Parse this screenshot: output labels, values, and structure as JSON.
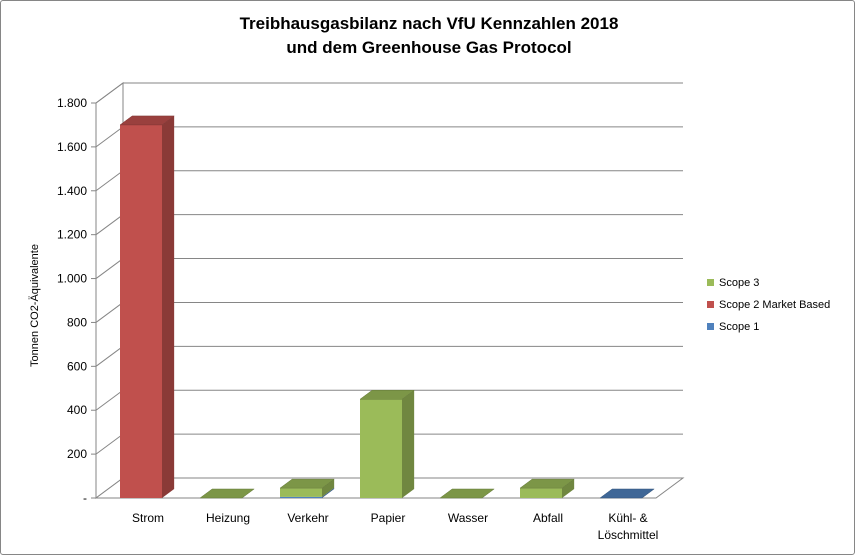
{
  "chart_data": {
    "type": "bar",
    "style": "3d-stacked-column",
    "title": [
      "Treibhausgasbilanz nach VfU Kennzahlen 2018",
      "und dem Greenhouse Gas Protocol"
    ],
    "ylabel": "Tonnen CO2-Äquivalente",
    "xlabel": "",
    "ylim": [
      0,
      1800
    ],
    "yticks": [
      0,
      200,
      400,
      600,
      800,
      1000,
      1200,
      1400,
      1600,
      1800
    ],
    "ytick_labels": [
      "-",
      "200",
      "400",
      "600",
      "800",
      "1.000",
      "1.200",
      "1.400",
      "1.600",
      "1.800"
    ],
    "categories": [
      [
        "Strom"
      ],
      [
        "Heizung"
      ],
      [
        "Verkehr"
      ],
      [
        "Papier"
      ],
      [
        "Wasser"
      ],
      [
        "Abfall"
      ],
      [
        "Kühl- &",
        "Löschmittel"
      ]
    ],
    "series": [
      {
        "name": "Scope 1",
        "color": "#4f81bd",
        "values": [
          0,
          0,
          5,
          0,
          0,
          0,
          0
        ]
      },
      {
        "name": "Scope 2 Market Based",
        "color": "#c0504d",
        "values": [
          1700,
          0,
          0,
          0,
          0,
          0,
          0
        ]
      },
      {
        "name": "Scope 3",
        "color": "#9bbb59",
        "values": [
          0,
          0,
          40,
          450,
          0,
          45,
          0
        ]
      }
    ],
    "legend": {
      "position": "right",
      "order": [
        "Scope 3",
        "Scope 2 Market Based",
        "Scope 1"
      ]
    },
    "grid": true
  }
}
